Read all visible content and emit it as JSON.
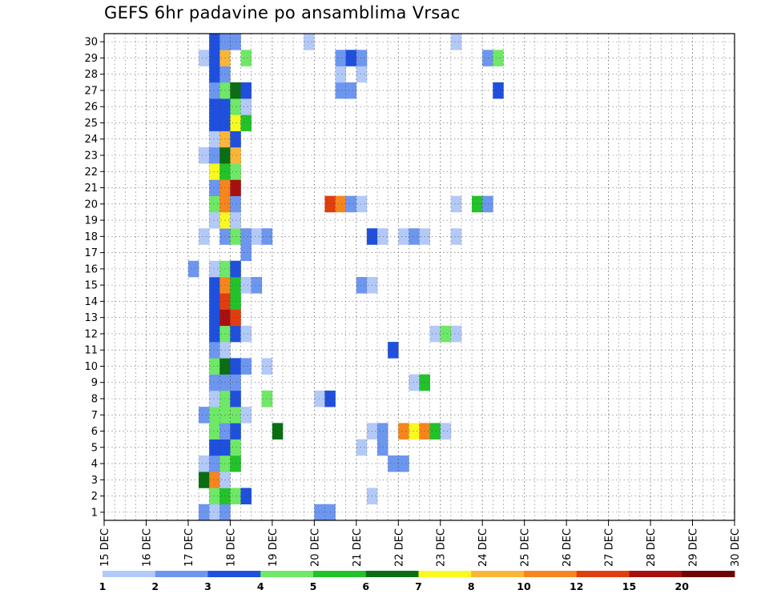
{
  "chart_data": {
    "type": "heatmap",
    "title": "GEFS 6hr padavine po ansamblima Vrsac",
    "y_categories": [
      "1",
      "2",
      "3",
      "4",
      "5",
      "6",
      "7",
      "8",
      "9",
      "10",
      "11",
      "12",
      "13",
      "14",
      "15",
      "16",
      "17",
      "18",
      "19",
      "20",
      "21",
      "22",
      "23",
      "24",
      "25",
      "26",
      "27",
      "28",
      "29",
      "30"
    ],
    "x_tick_labels": [
      "15 DEC",
      "16 DEC",
      "17 DEC",
      "18 DEC",
      "19 DEC",
      "20 DEC",
      "21 DEC",
      "22 DEC",
      "23 DEC",
      "24 DEC",
      "25 DEC",
      "26 DEC",
      "27 DEC",
      "28 DEC",
      "29 DEC",
      "30 DEC"
    ],
    "x_unit": "6-hour step from 15 DEC",
    "grid": true,
    "legend": {
      "position": "bottom",
      "thresholds": [
        "1",
        "2",
        "3",
        "4",
        "5",
        "6",
        "7",
        "8",
        "10",
        "12",
        "15",
        "20"
      ],
      "colors": [
        "#b3c9f7",
        "#6d96ef",
        "#1f50dd",
        "#6fe867",
        "#22c22a",
        "#0a6e14",
        "#f9f921",
        "#f9b637",
        "#f7851e",
        "#e03e0e",
        "#a81010",
        "#6e0606"
      ]
    },
    "cells": [
      [
        1,
        9,
        1
      ],
      [
        1,
        10,
        0
      ],
      [
        1,
        11,
        1
      ],
      [
        1,
        20,
        1
      ],
      [
        1,
        21,
        1
      ],
      [
        2,
        10,
        3
      ],
      [
        2,
        11,
        4
      ],
      [
        2,
        12,
        3
      ],
      [
        2,
        13,
        2
      ],
      [
        2,
        25,
        0
      ],
      [
        3,
        9,
        5
      ],
      [
        3,
        10,
        8
      ],
      [
        3,
        11,
        0
      ],
      [
        4,
        9,
        0
      ],
      [
        4,
        10,
        1
      ],
      [
        4,
        11,
        3
      ],
      [
        4,
        12,
        4
      ],
      [
        4,
        27,
        1
      ],
      [
        4,
        28,
        1
      ],
      [
        5,
        10,
        2
      ],
      [
        5,
        11,
        2
      ],
      [
        5,
        12,
        3
      ],
      [
        5,
        24,
        0
      ],
      [
        5,
        26,
        1
      ],
      [
        6,
        10,
        3
      ],
      [
        6,
        11,
        1
      ],
      [
        6,
        12,
        2
      ],
      [
        6,
        16,
        5
      ],
      [
        6,
        25,
        0
      ],
      [
        6,
        26,
        1
      ],
      [
        6,
        28,
        8
      ],
      [
        6,
        29,
        6
      ],
      [
        6,
        30,
        8
      ],
      [
        6,
        31,
        4
      ],
      [
        6,
        32,
        0
      ],
      [
        7,
        9,
        1
      ],
      [
        7,
        10,
        3
      ],
      [
        7,
        11,
        3
      ],
      [
        7,
        12,
        3
      ],
      [
        7,
        13,
        0
      ],
      [
        8,
        10,
        0
      ],
      [
        8,
        11,
        3
      ],
      [
        8,
        12,
        2
      ],
      [
        8,
        15,
        3
      ],
      [
        8,
        20,
        0
      ],
      [
        8,
        21,
        2
      ],
      [
        9,
        10,
        1
      ],
      [
        9,
        11,
        1
      ],
      [
        9,
        12,
        1
      ],
      [
        9,
        29,
        0
      ],
      [
        9,
        30,
        4
      ],
      [
        10,
        10,
        3
      ],
      [
        10,
        11,
        5
      ],
      [
        10,
        12,
        2
      ],
      [
        10,
        13,
        1
      ],
      [
        10,
        15,
        0
      ],
      [
        11,
        10,
        1
      ],
      [
        11,
        11,
        0
      ],
      [
        11,
        27,
        2
      ],
      [
        12,
        10,
        2
      ],
      [
        12,
        11,
        3
      ],
      [
        12,
        12,
        2
      ],
      [
        12,
        13,
        0
      ],
      [
        12,
        31,
        0
      ],
      [
        12,
        32,
        3
      ],
      [
        12,
        33,
        0
      ],
      [
        13,
        10,
        2
      ],
      [
        13,
        11,
        10
      ],
      [
        13,
        12,
        9
      ],
      [
        14,
        10,
        2
      ],
      [
        14,
        11,
        9
      ],
      [
        14,
        12,
        4
      ],
      [
        15,
        10,
        2
      ],
      [
        15,
        11,
        8
      ],
      [
        15,
        12,
        4
      ],
      [
        15,
        13,
        0
      ],
      [
        15,
        14,
        1
      ],
      [
        15,
        24,
        1
      ],
      [
        15,
        25,
        0
      ],
      [
        16,
        8,
        1
      ],
      [
        16,
        10,
        0
      ],
      [
        16,
        11,
        3
      ],
      [
        16,
        12,
        2
      ],
      [
        17,
        13,
        1
      ],
      [
        18,
        9,
        0
      ],
      [
        18,
        11,
        1
      ],
      [
        18,
        12,
        3
      ],
      [
        18,
        13,
        1
      ],
      [
        18,
        14,
        0
      ],
      [
        18,
        15,
        1
      ],
      [
        18,
        25,
        2
      ],
      [
        18,
        26,
        0
      ],
      [
        18,
        28,
        0
      ],
      [
        18,
        29,
        1
      ],
      [
        18,
        30,
        0
      ],
      [
        18,
        33,
        0
      ],
      [
        19,
        10,
        0
      ],
      [
        19,
        11,
        6
      ],
      [
        19,
        12,
        0
      ],
      [
        20,
        10,
        3
      ],
      [
        20,
        11,
        8
      ],
      [
        20,
        12,
        1
      ],
      [
        20,
        21,
        9
      ],
      [
        20,
        22,
        8
      ],
      [
        20,
        23,
        1
      ],
      [
        20,
        24,
        0
      ],
      [
        20,
        33,
        0
      ],
      [
        20,
        35,
        4
      ],
      [
        20,
        36,
        1
      ],
      [
        21,
        10,
        1
      ],
      [
        21,
        11,
        8
      ],
      [
        21,
        12,
        10
      ],
      [
        22,
        10,
        6
      ],
      [
        22,
        11,
        4
      ],
      [
        22,
        12,
        3
      ],
      [
        23,
        9,
        0
      ],
      [
        23,
        10,
        1
      ],
      [
        23,
        11,
        5
      ],
      [
        23,
        12,
        7
      ],
      [
        24,
        10,
        0
      ],
      [
        24,
        11,
        7
      ],
      [
        24,
        12,
        2
      ],
      [
        25,
        10,
        2
      ],
      [
        25,
        11,
        2
      ],
      [
        25,
        12,
        6
      ],
      [
        25,
        13,
        4
      ],
      [
        26,
        10,
        2
      ],
      [
        26,
        11,
        2
      ],
      [
        26,
        12,
        3
      ],
      [
        26,
        13,
        0
      ],
      [
        27,
        10,
        1
      ],
      [
        27,
        11,
        3
      ],
      [
        27,
        12,
        5
      ],
      [
        27,
        13,
        2
      ],
      [
        27,
        22,
        1
      ],
      [
        27,
        23,
        1
      ],
      [
        27,
        37,
        2
      ],
      [
        28,
        10,
        2
      ],
      [
        28,
        11,
        1
      ],
      [
        28,
        22,
        0
      ],
      [
        28,
        24,
        0
      ],
      [
        29,
        9,
        0
      ],
      [
        29,
        10,
        2
      ],
      [
        29,
        11,
        7
      ],
      [
        29,
        13,
        3
      ],
      [
        29,
        22,
        1
      ],
      [
        29,
        23,
        2
      ],
      [
        29,
        24,
        1
      ],
      [
        29,
        36,
        1
      ],
      [
        29,
        37,
        3
      ],
      [
        30,
        10,
        2
      ],
      [
        30,
        11,
        1
      ],
      [
        30,
        12,
        1
      ],
      [
        30,
        19,
        0
      ],
      [
        30,
        33,
        0
      ]
    ]
  }
}
